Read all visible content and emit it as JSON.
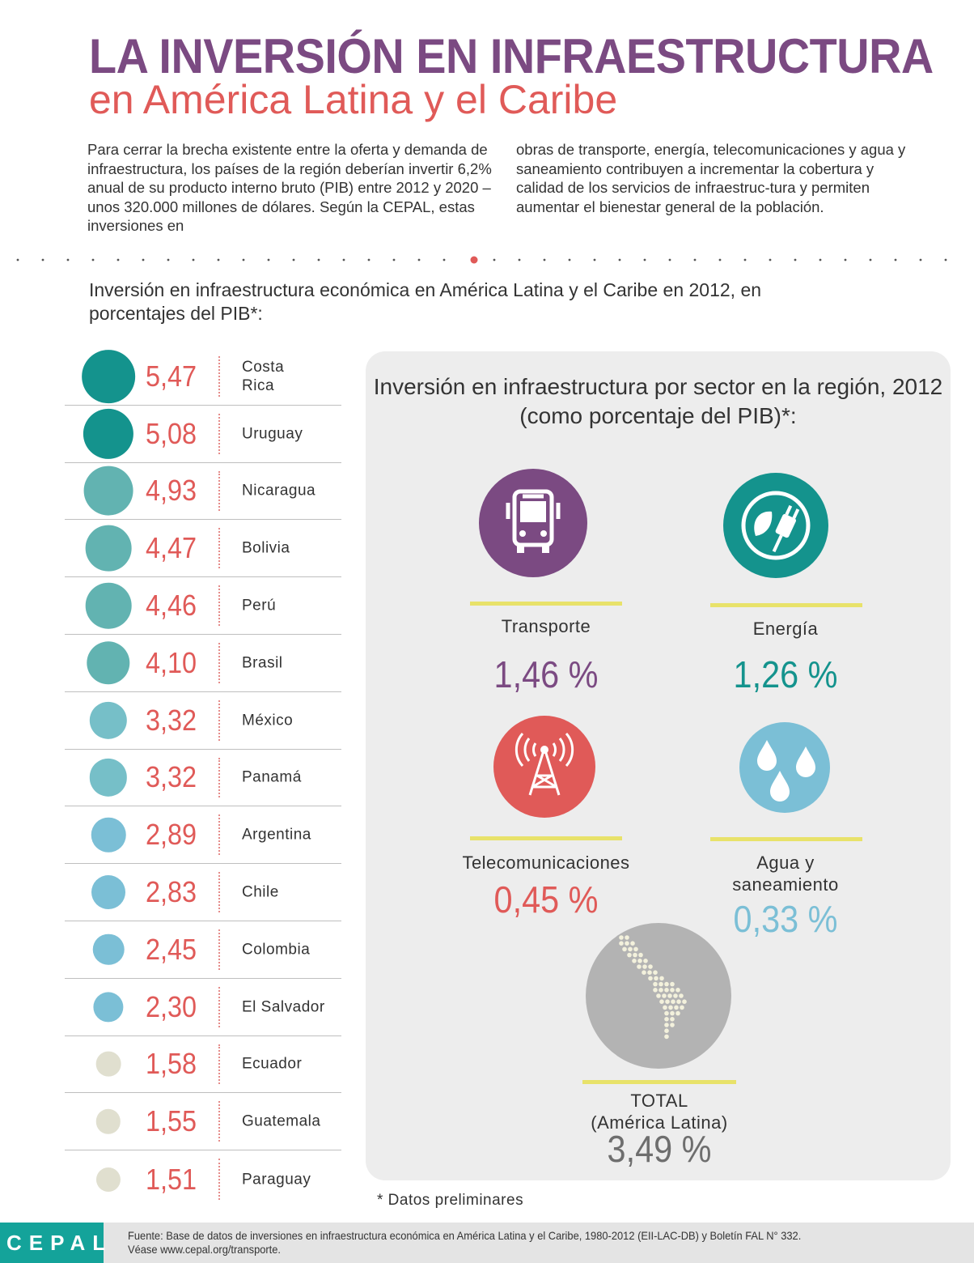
{
  "header": {
    "title": "LA INVERSIÓN EN INFRAESTRUCTURA",
    "subtitle": "en América Latina y el Caribe"
  },
  "intro": {
    "left": "Para cerrar la brecha existente entre la oferta y demanda de infraestructura, los países de la región deberían invertir 6,2% anual de su producto interno bruto (PIB) entre 2012 y 2020 –unos 320.000 millones de dólares. Según la CEPAL, estas inversiones en",
    "right": "obras de transporte, energía, telecomunicaciones y agua y saneamiento contribuyen a incrementar la cobertura y calidad de los servicios de infraestruc-tura y permiten aumentar el bienestar general de la población."
  },
  "colors": {
    "purple": "#7b4a82",
    "red": "#e05a58",
    "teal_dark": "#14938d",
    "teal_mid": "#62b3b1",
    "teal_light": "#76bfc8",
    "blue_light": "#7bbfd6",
    "beige": "#e0dfcf",
    "yellow": "#e8e26a",
    "gray": "#b3b3b3",
    "gray_text": "#6e6e6e"
  },
  "chart_data": [
    {
      "type": "bubble",
      "title": "Inversión en infraestructura económica en América Latina y el Caribe en 2012, en porcentajes del PIB*:",
      "unit": "% del PIB",
      "categories": [
        "Costa Rica",
        "Uruguay",
        "Nicaragua",
        "Bolivia",
        "Perú",
        "Brasil",
        "México",
        "Panamá",
        "Argentina",
        "Chile",
        "Colombia",
        "El Salvador",
        "Ecuador",
        "Guatemala",
        "Paraguay"
      ],
      "labels": [
        "5,47",
        "5,08",
        "4,93",
        "4,47",
        "4,46",
        "4,10",
        "3,32",
        "3,32",
        "2,89",
        "2,83",
        "2,45",
        "2,30",
        "1,58",
        "1,55",
        "1,51"
      ],
      "values": [
        5.47,
        5.08,
        4.93,
        4.47,
        4.46,
        4.1,
        3.32,
        3.32,
        2.89,
        2.83,
        2.45,
        2.3,
        1.58,
        1.55,
        1.51
      ]
    },
    {
      "type": "icon-values",
      "title": "Inversión en infraestructura por sector en la región, 2012 (como porcentaje del PIB)*:",
      "categories": [
        "Transporte",
        "Energía",
        "Telecomunicaciones",
        "Agua y saneamiento",
        "TOTAL (América Latina)"
      ],
      "values": [
        1.46,
        1.26,
        0.45,
        0.33,
        3.49
      ]
    }
  ],
  "sectors": {
    "transporte": {
      "label": "Transporte",
      "value": "1,46 %"
    },
    "energia": {
      "label": "Energía",
      "value": "1,26 %"
    },
    "telecom": {
      "label": "Telecomunicaciones",
      "value": "0,45 %"
    },
    "agua": {
      "label": "Agua y\nsaneamiento",
      "value": "0,33 %"
    },
    "total": {
      "label": "TOTAL\n(América Latina)",
      "value": "3,49 %"
    }
  },
  "footnote": "* Datos preliminares",
  "footer": {
    "logo": "CEPAL",
    "source_line1": "Fuente: Base de datos de inversiones en infraestructura económica en América Latina y el Caribe, 1980-2012 (EII-LAC-DB) y Boletín FAL N° 332.",
    "source_line2": "Véase www.cepal.org/transporte."
  }
}
